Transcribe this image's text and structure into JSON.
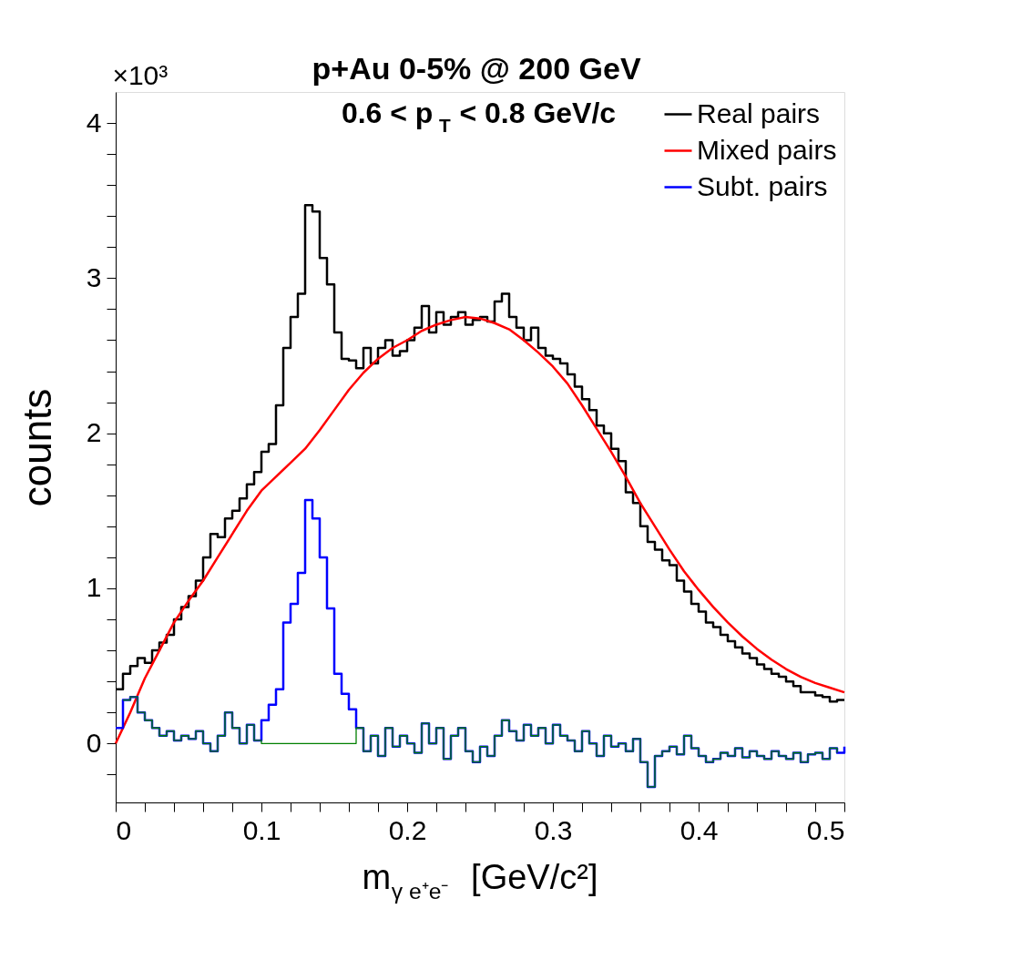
{
  "chart_data": {
    "type": "step",
    "title": "p+Au 0-5% @ 200 GeV",
    "subtitle": "0.6 < p$_{T}$ < 0.8 GeV/c",
    "xlabel": "m$_{γ e⁺e⁻}$ [GeV/c²]",
    "ylabel": "counts",
    "annotations": [
      "×10³"
    ],
    "x": [
      0,
      0.005,
      0.01,
      0.015,
      0.02,
      0.025,
      0.03,
      0.035,
      0.04,
      0.045,
      0.05,
      0.055,
      0.06,
      0.065,
      0.07,
      0.075,
      0.08,
      0.085,
      0.09,
      0.095,
      0.1,
      0.105,
      0.11,
      0.115,
      0.12,
      0.125,
      0.13,
      0.135,
      0.14,
      0.145,
      0.15,
      0.155,
      0.16,
      0.165,
      0.17,
      0.175,
      0.18,
      0.185,
      0.19,
      0.195,
      0.2,
      0.205,
      0.21,
      0.215,
      0.22,
      0.225,
      0.23,
      0.235,
      0.24,
      0.245,
      0.25,
      0.255,
      0.26,
      0.265,
      0.27,
      0.275,
      0.28,
      0.285,
      0.29,
      0.295,
      0.3,
      0.305,
      0.31,
      0.315,
      0.32,
      0.325,
      0.33,
      0.335,
      0.34,
      0.345,
      0.35,
      0.355,
      0.36,
      0.365,
      0.37,
      0.375,
      0.38,
      0.385,
      0.39,
      0.395,
      0.4,
      0.405,
      0.41,
      0.415,
      0.42,
      0.425,
      0.43,
      0.435,
      0.44,
      0.445,
      0.45,
      0.455,
      0.46,
      0.465,
      0.47,
      0.475,
      0.48,
      0.485,
      0.49,
      0.495,
      0.5
    ],
    "series": [
      {
        "name": "Real pairs",
        "color": "#000000",
        "values": [
          0.35,
          0.45,
          0.5,
          0.55,
          0.52,
          0.6,
          0.65,
          0.7,
          0.8,
          0.88,
          0.95,
          1.05,
          1.2,
          1.35,
          1.33,
          1.45,
          1.5,
          1.58,
          1.67,
          1.75,
          1.88,
          1.93,
          2.18,
          2.55,
          2.75,
          2.9,
          3.47,
          3.43,
          3.13,
          2.96,
          2.65,
          2.48,
          2.47,
          2.42,
          2.55,
          2.45,
          2.55,
          2.6,
          2.5,
          2.53,
          2.6,
          2.68,
          2.82,
          2.65,
          2.78,
          2.7,
          2.75,
          2.78,
          2.7,
          2.73,
          2.75,
          2.72,
          2.85,
          2.9,
          2.75,
          2.68,
          2.6,
          2.68,
          2.55,
          2.5,
          2.48,
          2.45,
          2.38,
          2.3,
          2.22,
          2.15,
          2.05,
          2.0,
          1.9,
          1.82,
          1.62,
          1.55,
          1.4,
          1.3,
          1.25,
          1.18,
          1.15,
          1.05,
          0.98,
          0.9,
          0.85,
          0.78,
          0.75,
          0.7,
          0.66,
          0.62,
          0.58,
          0.55,
          0.51,
          0.48,
          0.45,
          0.43,
          0.4,
          0.37,
          0.33,
          0.33,
          0.31,
          0.3,
          0.27,
          0.28,
          0.28
        ]
      },
      {
        "name": "Mixed pairs",
        "type": "line",
        "color": "#ff0000",
        "x": [
          0,
          0.01,
          0.02,
          0.03,
          0.04,
          0.05,
          0.06,
          0.07,
          0.08,
          0.09,
          0.1,
          0.11,
          0.12,
          0.13,
          0.14,
          0.15,
          0.16,
          0.17,
          0.18,
          0.19,
          0.2,
          0.21,
          0.22,
          0.23,
          0.24,
          0.25,
          0.26,
          0.27,
          0.28,
          0.29,
          0.3,
          0.31,
          0.32,
          0.33,
          0.34,
          0.35,
          0.36,
          0.37,
          0.38,
          0.39,
          0.4,
          0.41,
          0.42,
          0.43,
          0.44,
          0.45,
          0.46,
          0.47,
          0.48,
          0.49,
          0.5
        ],
        "values": [
          0.0,
          0.2,
          0.42,
          0.6,
          0.78,
          0.92,
          1.05,
          1.2,
          1.35,
          1.5,
          1.63,
          1.72,
          1.81,
          1.9,
          2.02,
          2.15,
          2.28,
          2.39,
          2.48,
          2.55,
          2.6,
          2.66,
          2.7,
          2.73,
          2.75,
          2.74,
          2.71,
          2.67,
          2.6,
          2.52,
          2.43,
          2.32,
          2.18,
          2.03,
          1.88,
          1.72,
          1.55,
          1.4,
          1.25,
          1.11,
          0.99,
          0.88,
          0.78,
          0.69,
          0.61,
          0.54,
          0.48,
          0.43,
          0.39,
          0.36,
          0.33
        ]
      },
      {
        "name": "Subt. pairs",
        "color": "#0000ff",
        "values": [
          0.1,
          0.28,
          0.3,
          0.2,
          0.15,
          0.1,
          0.05,
          0.08,
          0.02,
          0.05,
          0.03,
          0.08,
          0.0,
          -0.05,
          0.05,
          0.2,
          0.1,
          0.0,
          0.12,
          0.02,
          0.15,
          0.25,
          0.35,
          0.78,
          0.9,
          1.1,
          1.57,
          1.45,
          1.2,
          0.87,
          0.45,
          0.32,
          0.22,
          0.1,
          -0.05,
          0.05,
          -0.08,
          0.1,
          -0.02,
          0.05,
          0.0,
          -0.06,
          0.13,
          0.0,
          0.1,
          -0.1,
          0.05,
          0.1,
          -0.05,
          -0.12,
          -0.02,
          -0.08,
          0.05,
          0.15,
          0.08,
          0.02,
          0.12,
          0.05,
          0.1,
          0.0,
          0.12,
          0.05,
          0.02,
          -0.05,
          0.08,
          0.0,
          -0.08,
          0.05,
          -0.02,
          0.0,
          -0.05,
          0.03,
          -0.12,
          -0.28,
          -0.08,
          -0.05,
          -0.02,
          -0.07,
          0.05,
          -0.03,
          -0.08,
          -0.12,
          -0.1,
          -0.06,
          -0.08,
          -0.03,
          -0.09,
          -0.05,
          -0.08,
          -0.1,
          -0.05,
          -0.08,
          -0.1,
          -0.06,
          -0.12,
          -0.07,
          -0.06,
          -0.1,
          -0.03,
          -0.06,
          -0.02
        ]
      },
      {
        "color": "#007f00",
        "values": [
          null,
          0.28,
          0.3,
          0.2,
          0.15,
          0.1,
          0.05,
          0.08,
          0.02,
          0.05,
          0.03,
          0.08,
          0.0,
          -0.05,
          0.05,
          0.2,
          0.1,
          0.0,
          0.12,
          0.02,
          0,
          0,
          0,
          0,
          0,
          0,
          0,
          0,
          0,
          0,
          0,
          0,
          0,
          0.1,
          -0.05,
          0.05,
          -0.08,
          0.1,
          -0.02,
          0.05,
          0.0,
          -0.06,
          0.13,
          0.0,
          0.1,
          -0.1,
          0.05,
          0.1,
          -0.05,
          -0.12,
          -0.02,
          -0.08,
          0.05,
          0.15,
          0.08,
          0.02,
          0.12,
          0.05,
          0.1,
          0.0,
          0.12,
          0.05,
          0.02,
          -0.05,
          0.08,
          0.0,
          -0.08,
          0.05,
          -0.02,
          0.0,
          -0.05,
          0.03,
          -0.12,
          -0.28,
          -0.08,
          -0.05,
          -0.02,
          -0.07,
          0.05,
          -0.03,
          -0.08,
          -0.12,
          -0.1,
          -0.06,
          -0.08,
          -0.03,
          -0.09,
          -0.05,
          -0.08,
          -0.1,
          -0.05,
          -0.08,
          -0.1,
          -0.06,
          -0.12,
          -0.07,
          -0.06,
          -0.1,
          -0.03,
          -0.06,
          null
        ]
      }
    ],
    "xlim": [
      0,
      0.5
    ],
    "xticks": [
      0,
      {
        "value": 0.02,
        "label": null
      },
      {
        "value": 0.04,
        "label": null
      },
      {
        "value": 0.06,
        "label": null
      },
      {
        "value": 0.08,
        "label": null
      },
      0.1,
      {
        "value": 0.12,
        "label": null
      },
      {
        "value": 0.14,
        "label": null
      },
      {
        "value": 0.16,
        "label": null
      },
      {
        "value": 0.18,
        "label": null
      },
      0.2,
      {
        "value": 0.22,
        "label": null
      },
      {
        "value": 0.24,
        "label": null
      },
      {
        "value": 0.26,
        "label": null
      },
      {
        "value": 0.28,
        "label": null
      },
      0.3,
      {
        "value": 0.32,
        "label": null
      },
      {
        "value": 0.34,
        "label": null
      },
      {
        "value": 0.36,
        "label": null
      },
      {
        "value": 0.38,
        "label": null
      },
      0.4,
      {
        "value": 0.42,
        "label": null
      },
      {
        "value": 0.44,
        "label": null
      },
      {
        "value": 0.46,
        "label": null
      },
      {
        "value": 0.48,
        "label": null
      },
      0.5
    ],
    "ylim": [
      -0.38,
      4.2
    ],
    "yticks": [
      {
        "value": -0.2,
        "label": null
      },
      0,
      {
        "value": 0.2,
        "label": null
      },
      {
        "value": 0.4,
        "label": null
      },
      {
        "value": 0.6,
        "label": null
      },
      {
        "value": 0.8,
        "label": null
      },
      1,
      {
        "value": 1.2,
        "label": null
      },
      {
        "value": 1.4,
        "label": null
      },
      {
        "value": 1.6,
        "label": null
      },
      {
        "value": 1.8,
        "label": null
      },
      2,
      {
        "value": 2.2,
        "label": null
      },
      {
        "value": 2.4,
        "label": null
      },
      {
        "value": 2.6,
        "label": null
      },
      {
        "value": 2.8,
        "label": null
      },
      3,
      {
        "value": 3.2,
        "label": null
      },
      {
        "value": 3.4,
        "label": null
      },
      {
        "value": 3.6,
        "label": null
      },
      {
        "value": 3.8,
        "label": null
      },
      4
    ],
    "grid": false,
    "legend": "top right"
  }
}
